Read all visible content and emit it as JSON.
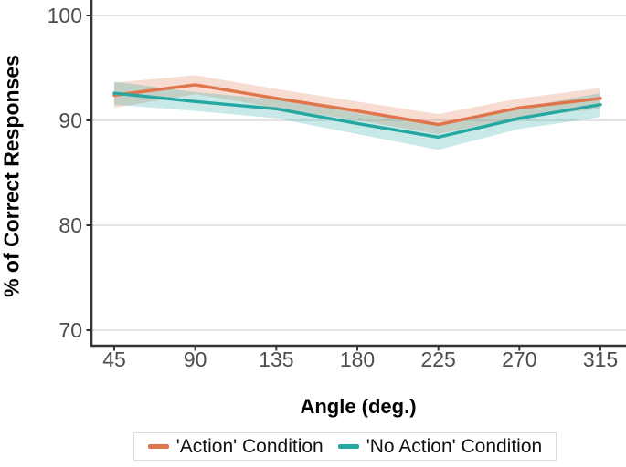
{
  "colors": {
    "background": "#ffffff",
    "axis": "#333333",
    "tick_text": "#4d4d4d",
    "grid": "#e4e4e4",
    "legend_border": "#dadada",
    "action": "#e0744b",
    "no_action": "#24a8a1"
  },
  "chart_data": {
    "type": "line",
    "title": "",
    "xlabel": "Angle (deg.)",
    "ylabel": "% of Correct Responses",
    "x": [
      45,
      90,
      135,
      180,
      225,
      270,
      315
    ],
    "x_tick_labels": [
      "45",
      "90",
      "135",
      "180",
      "225",
      "270",
      "315"
    ],
    "y_ticks": [
      100,
      90,
      80,
      70
    ],
    "y_tick_labels": [
      "100",
      "90",
      "80",
      "70"
    ],
    "ylim": [
      68.5,
      101.5
    ],
    "xlim": [
      30,
      330
    ],
    "grid": "horizontal-only",
    "legend_position": "bottom-center",
    "error_band": "shaded-ribbon",
    "series": [
      {
        "name": "'Action' Condition",
        "color": "#e0744b",
        "values": [
          92.4,
          93.4,
          92.1,
          90.9,
          89.6,
          91.2,
          92.1
        ],
        "ci_upper": [
          93.6,
          94.3,
          93.0,
          91.8,
          90.6,
          92.1,
          93.1
        ],
        "ci_lower": [
          91.2,
          92.5,
          91.2,
          90.0,
          88.7,
          90.3,
          91.1
        ]
      },
      {
        "name": "'No Action' Condition",
        "color": "#24a8a1",
        "values": [
          92.6,
          91.8,
          91.1,
          89.7,
          88.4,
          90.2,
          91.5
        ],
        "ci_upper": [
          93.7,
          92.7,
          92.0,
          90.7,
          89.6,
          91.2,
          92.6
        ],
        "ci_lower": [
          91.5,
          90.9,
          90.2,
          88.7,
          87.2,
          89.2,
          90.3
        ]
      }
    ]
  }
}
